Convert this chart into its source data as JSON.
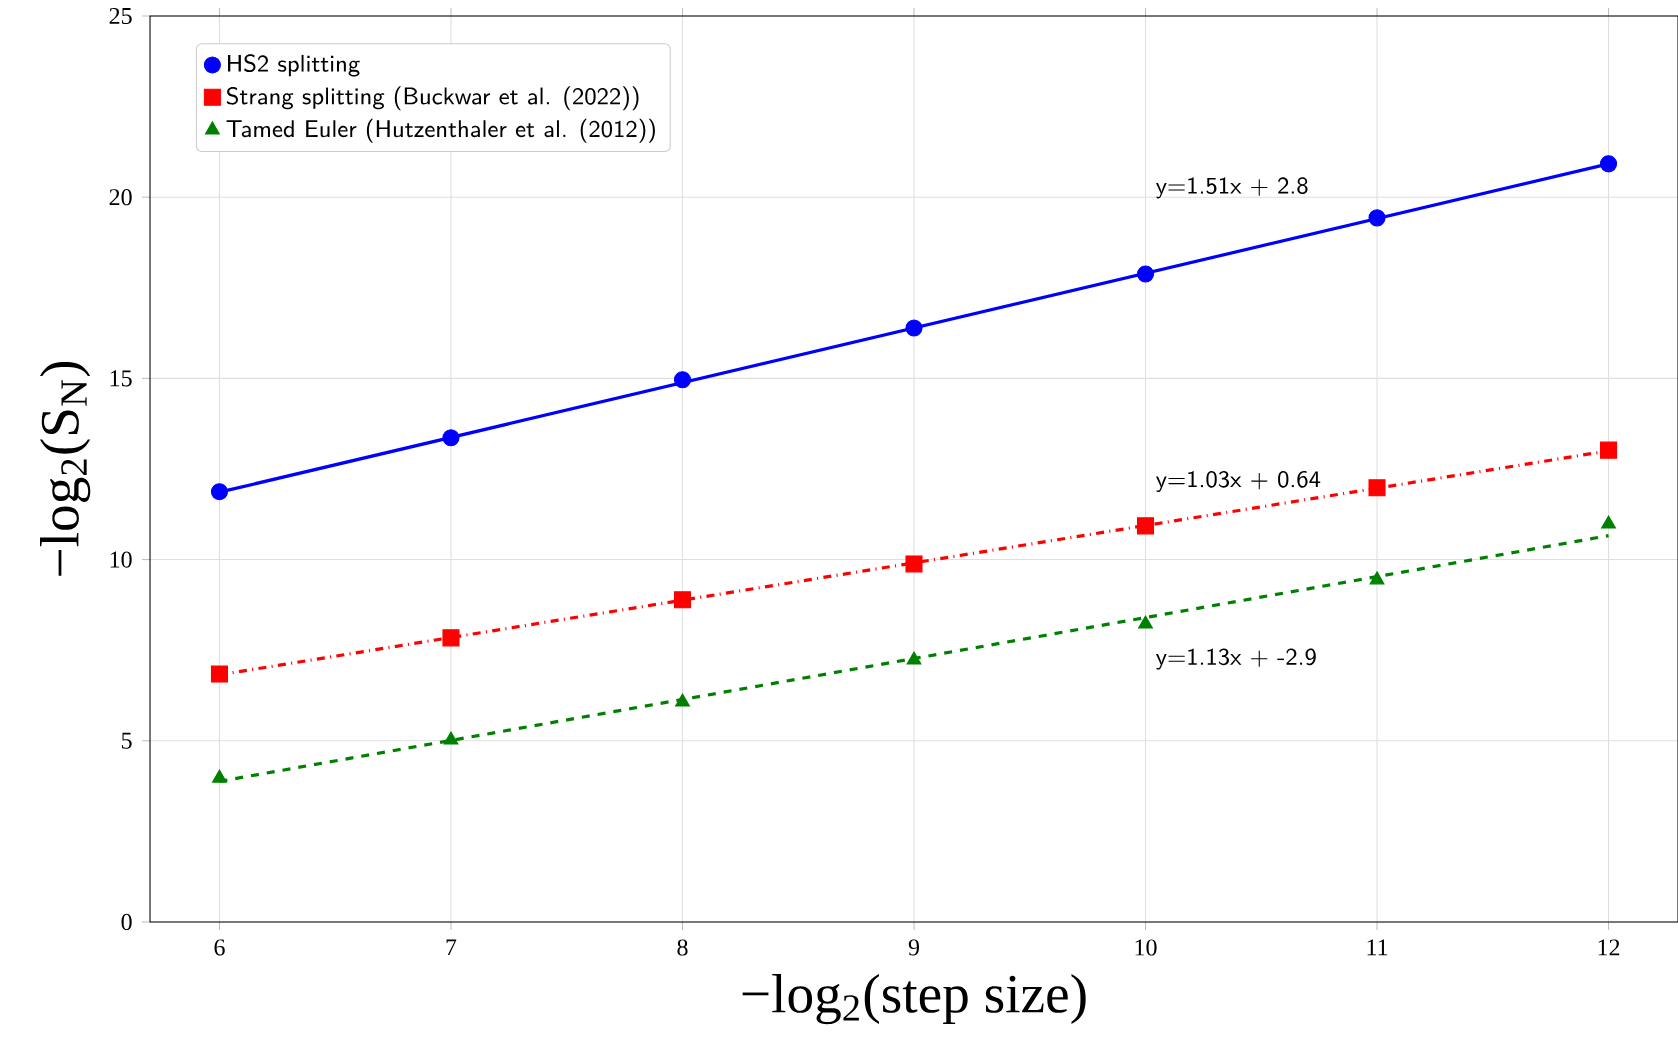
{
  "chart_data": {
    "type": "scatter",
    "xlabel": "−log$_{2}$(step size)",
    "ylabel": "−log$_{2}$(S$_{N}$)",
    "xlim": [
      5.7,
      12.3
    ],
    "ylim": [
      0,
      25
    ],
    "xticks": [
      6,
      7,
      8,
      9,
      10,
      11,
      12
    ],
    "yticks": [
      0,
      5,
      10,
      15,
      20,
      25
    ],
    "grid": true,
    "legend": "top left",
    "series": [
      {
        "name": "HS2 splitting",
        "color": "#0000ff",
        "marker": "circle",
        "x": [
          6,
          7,
          8,
          9,
          10,
          11,
          12
        ],
        "values": [
          11.87,
          13.36,
          14.96,
          16.39,
          17.88,
          19.43,
          20.92
        ]
      },
      {
        "name": "Strang splitting (Buckwar et al. (2022))",
        "color": "#ff0000",
        "marker": "square",
        "x": [
          6,
          7,
          8,
          9,
          10,
          11,
          12
        ],
        "values": [
          6.84,
          7.84,
          8.89,
          9.88,
          10.93,
          11.98,
          13.02
        ]
      },
      {
        "name": "Tamed Euler (Hutzenthaler et al. (2012))",
        "color": "#008000",
        "marker": "triangle",
        "x": [
          6,
          7,
          8,
          9,
          10,
          11,
          12
        ],
        "values": [
          3.97,
          5.02,
          6.07,
          7.23,
          8.22,
          9.44,
          10.98
        ]
      },
      {
        "type": "line",
        "color": "#0000ff",
        "line_style": "solid",
        "x": [
          6,
          12
        ],
        "values": [
          11.86,
          20.92
        ]
      },
      {
        "type": "line",
        "color": "#ff0000",
        "line_style": "dashdot",
        "x": [
          6,
          12
        ],
        "values": [
          6.82,
          13.0
        ]
      },
      {
        "type": "line",
        "color": "#008000",
        "line_style": "dashed",
        "x": [
          6,
          12
        ],
        "values": [
          3.88,
          10.66
        ]
      }
    ],
    "annotations": [
      "y=1.51x + 2.8",
      "y=1.03x + 0.64",
      "y=1.13x + -2.9"
    ]
  }
}
